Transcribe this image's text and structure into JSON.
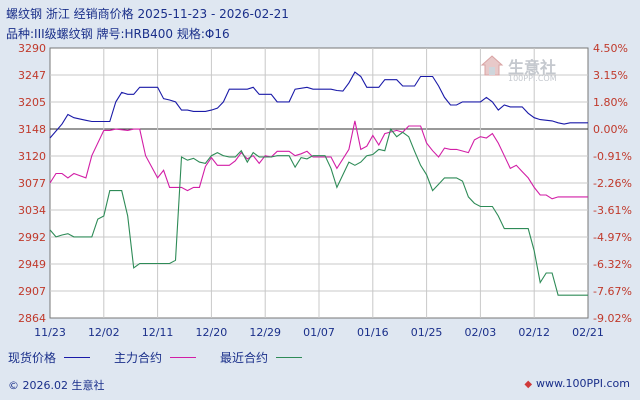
{
  "header": {
    "title": "螺纹钢 浙江 经销商价格 2025-11-23 - 2026-02-21",
    "subtitle": "品种:III级螺纹钢 牌号:HRB400 规格:Φ16"
  },
  "legend": {
    "items": [
      {
        "label": "现货价格",
        "color": "#1a1aa8"
      },
      {
        "label": "主力合约",
        "color": "#d21ea6"
      },
      {
        "label": "最近合约",
        "color": "#2e8b57"
      }
    ]
  },
  "footer": {
    "left": "© 2026.02 生意社",
    "right": "www.100PPI.com",
    "right_icon": "ppi-logo-icon"
  },
  "watermark": {
    "text": "生意社",
    "sub": "100PPI.COM",
    "icon": "house-logo-icon"
  },
  "chart_data": {
    "type": "line",
    "title": "螺纹钢 浙江 经销商价格 2025-11-23 - 2026-02-21",
    "x_ticks": [
      "11/23",
      "12/02",
      "12/11",
      "12/20",
      "12/29",
      "01/07",
      "01/16",
      "01/25",
      "02/03",
      "02/12",
      "02/21"
    ],
    "y_left_ticks": [
      "3290",
      "3247",
      "3205",
      "3148",
      "3120",
      "3077",
      "3034",
      "2992",
      "2949",
      "2907",
      "2864"
    ],
    "y_right_ticks": [
      "4.50%",
      "3.15%",
      "1.80%",
      "0.00%",
      "-0.91%",
      "-2.26%",
      "-3.61%",
      "-4.97%",
      "-6.32%",
      "-7.67%",
      "-9.02%"
    ],
    "ylim_left": [
      2864,
      3290
    ],
    "ylim_right": [
      -9.02,
      4.5
    ],
    "xlim_days": [
      0,
      90
    ],
    "grid": true,
    "baseline_value": 3148,
    "series": [
      {
        "name": "现货价格",
        "color": "#1a1aa8",
        "points": [
          [
            0,
            3148
          ],
          [
            2,
            3170
          ],
          [
            3,
            3185
          ],
          [
            4,
            3180
          ],
          [
            6,
            3176
          ],
          [
            7,
            3174
          ],
          [
            9,
            3174
          ],
          [
            10,
            3174
          ],
          [
            11,
            3205
          ],
          [
            12,
            3220
          ],
          [
            13,
            3217
          ],
          [
            14,
            3217
          ],
          [
            15,
            3228
          ],
          [
            18,
            3228
          ],
          [
            19,
            3210
          ],
          [
            20,
            3208
          ],
          [
            21,
            3205
          ],
          [
            22,
            3192
          ],
          [
            23,
            3192
          ],
          [
            24,
            3190
          ],
          [
            25,
            3190
          ],
          [
            26,
            3190
          ],
          [
            27,
            3192
          ],
          [
            28,
            3195
          ],
          [
            29,
            3205
          ],
          [
            30,
            3225
          ],
          [
            31,
            3225
          ],
          [
            33,
            3225
          ],
          [
            34,
            3228
          ],
          [
            35,
            3217
          ],
          [
            37,
            3217
          ],
          [
            38,
            3205
          ],
          [
            40,
            3205
          ],
          [
            41,
            3225
          ],
          [
            43,
            3228
          ],
          [
            44,
            3225
          ],
          [
            47,
            3225
          ],
          [
            48,
            3223
          ],
          [
            49,
            3222
          ],
          [
            50,
            3235
          ],
          [
            51,
            3252
          ],
          [
            52,
            3245
          ],
          [
            53,
            3228
          ],
          [
            55,
            3228
          ],
          [
            56,
            3240
          ],
          [
            58,
            3240
          ],
          [
            59,
            3230
          ],
          [
            61,
            3230
          ],
          [
            62,
            3245
          ],
          [
            64,
            3245
          ],
          [
            65,
            3230
          ],
          [
            66,
            3212
          ],
          [
            67,
            3200
          ],
          [
            68,
            3200
          ],
          [
            69,
            3205
          ],
          [
            71,
            3205
          ],
          [
            72,
            3205
          ],
          [
            73,
            3212
          ],
          [
            74,
            3205
          ],
          [
            75,
            3192
          ],
          [
            76,
            3200
          ],
          [
            77,
            3197
          ],
          [
            79,
            3197
          ],
          [
            80,
            3187
          ],
          [
            81,
            3180
          ],
          [
            82,
            3177
          ],
          [
            84,
            3175
          ],
          [
            85,
            3172
          ],
          [
            86,
            3170
          ],
          [
            87,
            3172
          ],
          [
            88,
            3172
          ],
          [
            90,
            3172
          ]
        ]
      },
      {
        "name": "主力合约",
        "color": "#d21ea6",
        "points": [
          [
            0,
            3077
          ],
          [
            1,
            3092
          ],
          [
            2,
            3092
          ],
          [
            3,
            3085
          ],
          [
            4,
            3092
          ],
          [
            6,
            3085
          ],
          [
            7,
            3120
          ],
          [
            9,
            3160
          ],
          [
            10,
            3160
          ],
          [
            11,
            3162
          ],
          [
            13,
            3160
          ],
          [
            14,
            3162
          ],
          [
            15,
            3162
          ],
          [
            16,
            3120
          ],
          [
            18,
            3085
          ],
          [
            19,
            3097
          ],
          [
            20,
            3070
          ],
          [
            22,
            3070
          ],
          [
            23,
            3065
          ],
          [
            24,
            3070
          ],
          [
            25,
            3070
          ],
          [
            26,
            3103
          ],
          [
            27,
            3117
          ],
          [
            28,
            3105
          ],
          [
            30,
            3105
          ],
          [
            31,
            3112
          ],
          [
            32,
            3125
          ],
          [
            33,
            3115
          ],
          [
            34,
            3120
          ],
          [
            35,
            3108
          ],
          [
            36,
            3120
          ],
          [
            37,
            3118
          ],
          [
            38,
            3127
          ],
          [
            40,
            3127
          ],
          [
            41,
            3120
          ],
          [
            42,
            3123
          ],
          [
            43,
            3127
          ],
          [
            44,
            3118
          ],
          [
            47,
            3118
          ],
          [
            48,
            3100
          ],
          [
            50,
            3130
          ],
          [
            51,
            3175
          ],
          [
            52,
            3130
          ],
          [
            53,
            3135
          ],
          [
            54,
            3152
          ],
          [
            55,
            3137
          ],
          [
            56,
            3155
          ],
          [
            58,
            3160
          ],
          [
            59,
            3157
          ],
          [
            60,
            3167
          ],
          [
            62,
            3167
          ],
          [
            63,
            3140
          ],
          [
            64,
            3128
          ],
          [
            65,
            3118
          ],
          [
            66,
            3132
          ],
          [
            67,
            3130
          ],
          [
            68,
            3130
          ],
          [
            70,
            3125
          ],
          [
            71,
            3145
          ],
          [
            72,
            3150
          ],
          [
            73,
            3148
          ],
          [
            74,
            3155
          ],
          [
            75,
            3140
          ],
          [
            76,
            3120
          ],
          [
            77,
            3100
          ],
          [
            78,
            3105
          ],
          [
            79,
            3095
          ],
          [
            80,
            3085
          ],
          [
            81,
            3070
          ],
          [
            82,
            3058
          ],
          [
            83,
            3058
          ],
          [
            84,
            3052
          ],
          [
            85,
            3055
          ],
          [
            90,
            3055
          ]
        ]
      },
      {
        "name": "最近合约",
        "color": "#2e8b57",
        "points": [
          [
            0,
            3003
          ],
          [
            1,
            2992
          ],
          [
            2,
            2995
          ],
          [
            3,
            2997
          ],
          [
            4,
            2992
          ],
          [
            6,
            2992
          ],
          [
            7,
            2992
          ],
          [
            8,
            3020
          ],
          [
            9,
            3025
          ],
          [
            10,
            3065
          ],
          [
            12,
            3065
          ],
          [
            13,
            3025
          ],
          [
            14,
            2943
          ],
          [
            15,
            2950
          ],
          [
            18,
            2950
          ],
          [
            20,
            2950
          ],
          [
            21,
            2955
          ],
          [
            22,
            3118
          ],
          [
            23,
            3113
          ],
          [
            24,
            3116
          ],
          [
            25,
            3110
          ],
          [
            26,
            3108
          ],
          [
            27,
            3120
          ],
          [
            28,
            3125
          ],
          [
            29,
            3120
          ],
          [
            30,
            3118
          ],
          [
            31,
            3118
          ],
          [
            32,
            3128
          ],
          [
            33,
            3110
          ],
          [
            34,
            3125
          ],
          [
            35,
            3118
          ],
          [
            37,
            3118
          ],
          [
            38,
            3120
          ],
          [
            40,
            3120
          ],
          [
            41,
            3102
          ],
          [
            42,
            3117
          ],
          [
            43,
            3115
          ],
          [
            44,
            3120
          ],
          [
            45,
            3120
          ],
          [
            46,
            3120
          ],
          [
            47,
            3100
          ],
          [
            48,
            3070
          ],
          [
            50,
            3110
          ],
          [
            51,
            3105
          ],
          [
            52,
            3110
          ],
          [
            53,
            3120
          ],
          [
            54,
            3122
          ],
          [
            55,
            3130
          ],
          [
            56,
            3128
          ],
          [
            57,
            3162
          ],
          [
            58,
            3150
          ],
          [
            59,
            3157
          ],
          [
            60,
            3150
          ],
          [
            61,
            3127
          ],
          [
            62,
            3105
          ],
          [
            63,
            3090
          ],
          [
            64,
            3065
          ],
          [
            65,
            3075
          ],
          [
            66,
            3085
          ],
          [
            68,
            3085
          ],
          [
            69,
            3080
          ],
          [
            70,
            3055
          ],
          [
            71,
            3045
          ],
          [
            72,
            3040
          ],
          [
            74,
            3040
          ],
          [
            75,
            3025
          ],
          [
            76,
            3005
          ],
          [
            77,
            3005
          ],
          [
            80,
            3005
          ],
          [
            81,
            2970
          ],
          [
            82,
            2920
          ],
          [
            83,
            2935
          ],
          [
            84,
            2935
          ],
          [
            85,
            2900
          ],
          [
            90,
            2900
          ]
        ]
      }
    ]
  }
}
